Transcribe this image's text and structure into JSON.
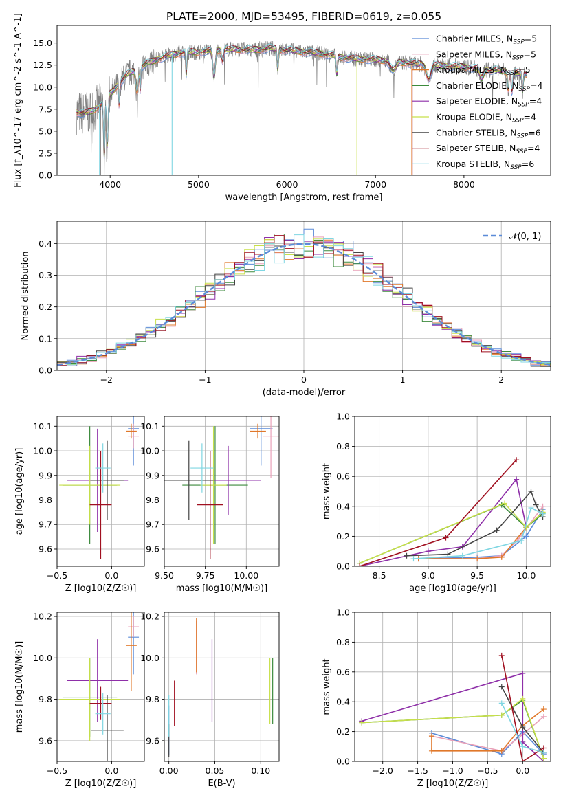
{
  "colors": {
    "chabrier_miles": "#5b8bd8",
    "salpeter_miles": "#e9a0b8",
    "kroupa_miles": "#e0782a",
    "chabrier_elodie": "#3c8a3c",
    "salpeter_elodie": "#8e2fa8",
    "kroupa_elodie": "#c8e04a",
    "chabrier_stelib": "#444444",
    "salpeter_stelib": "#a01020",
    "kroupa_stelib": "#7fd6e2",
    "data_spectrum": "#808080",
    "normal_curve": "#5b8bd8",
    "grid": "#b0b0b0"
  },
  "series_labels": [
    "Chabrier MILES, N_SSP=5",
    "Salpeter MILES, N_SSP=5",
    "Kroupa MILES, N_SSP=5",
    "Chabrier ELODIE, N_SSP=4",
    "Salpeter ELODIE, N_SSP=4",
    "Kroupa ELODIE, N_SSP=4",
    "Chabrier STELIB, N_SSP=6",
    "Salpeter STELIB, N_SSP=4",
    "Kroupa STELIB, N_SSP=6"
  ],
  "chart_data": [
    {
      "id": "spectrum",
      "type": "line",
      "title": "PLATE=2000, MJD=53495, FIBERID=0619, z=0.055",
      "xlabel": "wavelength [Angstrom, rest frame]",
      "ylabel": "Flux [f_λ10^-17 erg cm^-2 s^-1 A^-1]",
      "xlim": [
        3400,
        8980
      ],
      "ylim": [
        0,
        17
      ],
      "xticks": [
        4000,
        5000,
        6000,
        7000,
        8000
      ],
      "yticks": [
        0.0,
        2.5,
        5.0,
        7.5,
        10.0,
        12.5,
        15.0
      ],
      "continuum": {
        "x": [
          3620,
          3700,
          3800,
          3900,
          4000,
          4100,
          4200,
          4300,
          4400,
          4600,
          4800,
          5000,
          5200,
          5400,
          5600,
          5800,
          6000,
          6200,
          6400,
          6600,
          6800,
          7000,
          7200,
          7400,
          7600,
          7800,
          8000,
          8200,
          8400,
          8600,
          8700
        ],
        "y": [
          7.2,
          7.0,
          7.3,
          8.0,
          9.2,
          10.4,
          11.5,
          12.0,
          12.6,
          13.4,
          13.9,
          14.0,
          14.2,
          14.3,
          14.2,
          14.4,
          14.2,
          14.0,
          13.8,
          13.4,
          13.2,
          13.1,
          12.9,
          12.7,
          12.5,
          12.4,
          12.3,
          12.0,
          11.9,
          11.6,
          11.5
        ]
      },
      "legend": "upper right"
    },
    {
      "id": "residuals",
      "type": "histogram",
      "xlabel": "(data-model)/error",
      "ylabel": "Normed distribution",
      "xlim": [
        -2.5,
        2.5
      ],
      "ylim": [
        0,
        0.47
      ],
      "xticks": [
        -2,
        -1,
        0,
        1,
        2
      ],
      "yticks": [
        0.0,
        0.1,
        0.2,
        0.3,
        0.4
      ],
      "bin_width": 0.1,
      "reference_curve": "N(0,1)",
      "legend_label": "𝒩(0, 1)",
      "legend": "upper right"
    },
    {
      "id": "age_vs_Z",
      "type": "errorbar",
      "xlabel": "Z [log10(Z/Z☉)]",
      "ylabel": "age  [log10(age/yr)]",
      "xlim": [
        -0.5,
        0.3
      ],
      "ylim": [
        9.53,
        10.14
      ],
      "xticks": [
        -0.5,
        0.0
      ],
      "yticks": [
        9.6,
        9.7,
        9.8,
        9.9,
        10.0,
        10.1
      ],
      "points": [
        {
          "series": "chabrier_miles",
          "x": 0.2,
          "xerr": 0.05,
          "y": 10.09,
          "yerr": 0.15
        },
        {
          "series": "salpeter_miles",
          "x": 0.2,
          "xerr": 0.05,
          "y": 10.06,
          "yerr": 0.05
        },
        {
          "series": "kroupa_miles",
          "x": 0.18,
          "xerr": 0.05,
          "y": 10.08,
          "yerr": 0.03
        },
        {
          "series": "chabrier_elodie",
          "x": -0.2,
          "xerr": 0.25,
          "y": 9.86,
          "yerr": 0.24
        },
        {
          "series": "salpeter_elodie",
          "x": -0.13,
          "xerr": 0.28,
          "y": 9.88,
          "yerr": 0.21
        },
        {
          "series": "kroupa_elodie",
          "x": -0.2,
          "xerr": 0.28,
          "y": 9.86,
          "yerr": 0.16
        },
        {
          "series": "chabrier_stelib",
          "x": -0.04,
          "xerr": 0.15,
          "y": 9.88,
          "yerr": 0.16
        },
        {
          "series": "salpeter_stelib",
          "x": -0.1,
          "xerr": 0.1,
          "y": 9.78,
          "yerr": 0.22
        },
        {
          "series": "kroupa_stelib",
          "x": -0.08,
          "xerr": 0.07,
          "y": 9.93,
          "yerr": 0.1
        }
      ]
    },
    {
      "id": "age_vs_mass",
      "type": "errorbar",
      "xlabel": "mass [log10(M/M☉)]",
      "ylabel": "",
      "xlim": [
        9.5,
        10.2
      ],
      "ylim": [
        9.53,
        10.14
      ],
      "xticks": [
        9.5,
        9.75,
        10.0
      ],
      "yticks": [
        9.6,
        9.7,
        9.8,
        9.9,
        10.0,
        10.1
      ],
      "points": [
        {
          "series": "chabrier_miles",
          "x": 10.09,
          "xerr": 0.07,
          "y": 10.09,
          "yerr": 0.15
        },
        {
          "series": "salpeter_miles",
          "x": 10.15,
          "xerr": 0.05,
          "y": 10.06,
          "yerr": 0.17
        },
        {
          "series": "kroupa_miles",
          "x": 10.07,
          "xerr": 0.05,
          "y": 10.08,
          "yerr": 0.03
        },
        {
          "series": "chabrier_elodie",
          "x": 9.81,
          "xerr": 0.2,
          "y": 9.86,
          "yerr": 0.24
        },
        {
          "series": "salpeter_elodie",
          "x": 9.89,
          "xerr": 0.2,
          "y": 9.88,
          "yerr": 0.14
        },
        {
          "series": "kroupa_elodie",
          "x": 9.8,
          "xerr": 0.08,
          "y": 9.86,
          "yerr": 0.24
        },
        {
          "series": "chabrier_stelib",
          "x": 9.65,
          "xerr": 0.15,
          "y": 9.88,
          "yerr": 0.16
        },
        {
          "series": "salpeter_stelib",
          "x": 9.78,
          "xerr": 0.08,
          "y": 9.78,
          "yerr": 0.22
        },
        {
          "series": "kroupa_stelib",
          "x": 9.73,
          "xerr": 0.07,
          "y": 9.93,
          "yerr": 0.1
        }
      ]
    },
    {
      "id": "mass_weight_vs_age",
      "type": "line",
      "xlabel": "age  [log10(age/yr)]",
      "ylabel": "mass weight",
      "xlim": [
        8.25,
        10.25
      ],
      "ylim": [
        0,
        1.0
      ],
      "xticks": [
        8.5,
        9.0,
        9.5,
        10.0
      ],
      "yticks": [
        0.0,
        0.2,
        0.4,
        0.6,
        0.8,
        1.0
      ],
      "series": [
        {
          "key": "chabrier_miles",
          "x": [
            8.9,
            9.5,
            9.75,
            10.0,
            10.17
          ],
          "y": [
            0.05,
            0.06,
            0.07,
            0.2,
            0.38
          ]
        },
        {
          "key": "salpeter_miles",
          "x": [
            8.9,
            9.5,
            9.75,
            9.92,
            10.17
          ],
          "y": [
            0.05,
            0.05,
            0.07,
            0.18,
            0.4
          ]
        },
        {
          "key": "kroupa_miles",
          "x": [
            8.9,
            9.5,
            9.75,
            10.0,
            10.17
          ],
          "y": [
            0.05,
            0.05,
            0.06,
            0.26,
            0.36
          ]
        },
        {
          "key": "chabrier_elodie",
          "x": [
            8.3,
            9.75,
            10.0,
            10.17
          ],
          "y": [
            0.02,
            0.41,
            0.26,
            0.35
          ]
        },
        {
          "key": "salpeter_elodie",
          "x": [
            8.3,
            9.0,
            9.35,
            9.9,
            10.0
          ],
          "y": [
            0.0,
            0.1,
            0.13,
            0.58,
            0.26
          ]
        },
        {
          "key": "kroupa_elodie",
          "x": [
            8.3,
            9.78,
            10.0,
            10.17
          ],
          "y": [
            0.02,
            0.42,
            0.26,
            0.36
          ]
        },
        {
          "key": "chabrier_stelib",
          "x": [
            8.78,
            9.2,
            9.7,
            10.05,
            10.1,
            10.17
          ],
          "y": [
            0.07,
            0.08,
            0.24,
            0.5,
            0.41,
            0.33
          ]
        },
        {
          "key": "salpeter_stelib",
          "x": [
            8.3,
            9.18,
            9.9
          ],
          "y": [
            0.0,
            0.19,
            0.71
          ]
        },
        {
          "key": "kroupa_stelib",
          "x": [
            8.85,
            9.35,
            9.95,
            10.05,
            10.17
          ],
          "y": [
            0.05,
            0.07,
            0.17,
            0.39,
            0.35
          ]
        }
      ]
    },
    {
      "id": "mass_vs_Z",
      "type": "errorbar",
      "xlabel": "Z [log10(Z/Z☉)]",
      "ylabel": "mass [log10(M/M☉)]",
      "xlim": [
        -0.5,
        0.3
      ],
      "ylim": [
        9.5,
        10.22
      ],
      "xticks": [
        -0.5,
        0.0
      ],
      "yticks": [
        9.6,
        9.8,
        10.0,
        10.2
      ],
      "points": [
        {
          "series": "chabrier_miles",
          "x": 0.2,
          "xerr": 0.05,
          "y": 10.1,
          "yerr": 0.18
        },
        {
          "series": "salpeter_miles",
          "x": 0.2,
          "xerr": 0.05,
          "y": 10.15,
          "yerr": 0.05
        },
        {
          "series": "kroupa_miles",
          "x": 0.18,
          "xerr": 0.05,
          "y": 10.06,
          "yerr": 0.22
        },
        {
          "series": "chabrier_elodie",
          "x": -0.2,
          "xerr": 0.25,
          "y": 9.81,
          "yerr": 0.19
        },
        {
          "series": "salpeter_elodie",
          "x": -0.13,
          "xerr": 0.28,
          "y": 9.89,
          "yerr": 0.2
        },
        {
          "series": "kroupa_elodie",
          "x": -0.2,
          "xerr": 0.28,
          "y": 9.8,
          "yerr": 0.2
        },
        {
          "series": "chabrier_stelib",
          "x": -0.04,
          "xerr": 0.15,
          "y": 9.65,
          "yerr": 0.17
        },
        {
          "series": "salpeter_stelib",
          "x": -0.1,
          "xerr": 0.1,
          "y": 9.78,
          "yerr": 0.08
        },
        {
          "series": "kroupa_stelib",
          "x": -0.08,
          "xerr": 0.07,
          "y": 9.73,
          "yerr": 0.1
        }
      ]
    },
    {
      "id": "mass_vs_ebv",
      "type": "errorbar",
      "xlabel": "E(B-V)",
      "ylabel": "",
      "xlim": [
        -0.005,
        0.12
      ],
      "ylim": [
        9.5,
        10.22
      ],
      "xticks": [
        0.0,
        0.05,
        0.1
      ],
      "yticks": [
        9.6,
        9.8,
        10.0,
        10.2
      ],
      "points": [
        {
          "series": "chabrier_miles",
          "x": 0.0,
          "y": 9.65,
          "yerr": 0.12
        },
        {
          "series": "salpeter_miles",
          "x": 0.03,
          "y": 10.05,
          "yerr": 0.13
        },
        {
          "series": "kroupa_miles",
          "x": 0.03,
          "y": 10.06,
          "yerr": 0.13
        },
        {
          "series": "chabrier_elodie",
          "x": 0.113,
          "y": 9.84,
          "yerr": 0.16
        },
        {
          "series": "salpeter_elodie",
          "x": 0.047,
          "y": 9.89,
          "yerr": 0.2
        },
        {
          "series": "kroupa_elodie",
          "x": 0.11,
          "y": 9.84,
          "yerr": 0.16
        },
        {
          "series": "chabrier_stelib",
          "x": 0.0,
          "y": 9.6,
          "yerr": 0.08
        },
        {
          "series": "salpeter_stelib",
          "x": 0.006,
          "y": 9.78,
          "yerr": 0.11
        },
        {
          "series": "kroupa_stelib",
          "x": 0.0,
          "y": 9.72,
          "yerr": 0.1
        }
      ]
    },
    {
      "id": "mass_weight_vs_Z",
      "type": "line",
      "xlabel": "Z [log10(Z/Z☉)]",
      "ylabel": "mass weight",
      "xlim": [
        -2.4,
        0.4
      ],
      "ylim": [
        0,
        1.0
      ],
      "xticks": [
        -2.0,
        -1.5,
        -1.0,
        -0.5,
        0.0
      ],
      "yticks": [
        0.0,
        0.2,
        0.4,
        0.6,
        0.8,
        1.0
      ],
      "series": [
        {
          "key": "chabrier_miles",
          "x": [
            -1.3,
            -0.3,
            0.0,
            0.3
          ],
          "y": [
            0.19,
            0.05,
            0.2,
            0.05
          ]
        },
        {
          "key": "salpeter_miles",
          "x": [
            -1.3,
            -0.3,
            0.0,
            0.3
          ],
          "y": [
            0.17,
            0.07,
            0.18,
            0.3
          ]
        },
        {
          "key": "kroupa_miles",
          "x": [
            -1.3,
            -1.3,
            -0.3,
            0.0,
            0.3
          ],
          "y": [
            0.17,
            0.07,
            0.07,
            0.24,
            0.35
          ]
        },
        {
          "key": "chabrier_elodie",
          "x": [
            -2.3,
            -0.3,
            0.0,
            0.3
          ],
          "y": [
            0.26,
            0.31,
            0.41,
            0.02
          ]
        },
        {
          "key": "salpeter_elodie",
          "x": [
            -2.3,
            0.0,
            0.0,
            0.3
          ],
          "y": [
            0.27,
            0.59,
            0.13,
            0.0
          ]
        },
        {
          "key": "kroupa_elodie",
          "x": [
            -2.3,
            -0.3,
            0.0,
            0.3
          ],
          "y": [
            0.26,
            0.31,
            0.42,
            0.02
          ]
        },
        {
          "key": "chabrier_stelib",
          "x": [
            -0.3,
            0.0,
            0.3
          ],
          "y": [
            0.5,
            0.23,
            0.06
          ]
        },
        {
          "key": "salpeter_stelib",
          "x": [
            -0.3,
            0.0,
            0.3
          ],
          "y": [
            0.71,
            0.0,
            0.09
          ]
        },
        {
          "key": "kroupa_stelib",
          "x": [
            -0.3,
            0.0,
            0.3
          ],
          "y": [
            0.39,
            0.1,
            0.06
          ]
        }
      ]
    }
  ]
}
